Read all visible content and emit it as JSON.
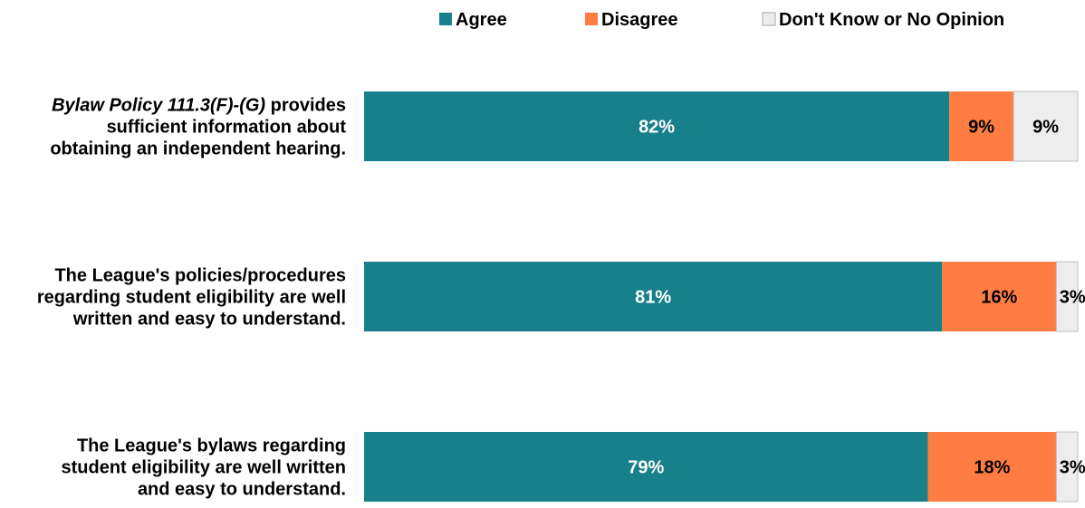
{
  "chart_data": {
    "type": "bar",
    "orientation": "horizontal",
    "stacked": "percent",
    "legend_position": "top",
    "grid": false,
    "xlim": [
      0,
      100
    ],
    "categories": [
      {
        "lines": [
          [
            {
              "text": "Bylaw Policy 111.3(F)-(G)",
              "italic": true
            },
            {
              "text": " provides",
              "italic": false
            }
          ],
          [
            {
              "text": "sufficient information about",
              "italic": false
            }
          ],
          [
            {
              "text": "obtaining an independent hearing.",
              "italic": false
            }
          ]
        ]
      },
      {
        "lines": [
          [
            {
              "text": "The League's policies/procedures",
              "italic": false
            }
          ],
          [
            {
              "text": "regarding student eligibility are well",
              "italic": false
            }
          ],
          [
            {
              "text": "written and easy to understand.",
              "italic": false
            }
          ]
        ]
      },
      {
        "lines": [
          [
            {
              "text": "The League's bylaws regarding",
              "italic": false
            }
          ],
          [
            {
              "text": "student eligibility are well written",
              "italic": false
            }
          ],
          [
            {
              "text": "and easy to understand.",
              "italic": false
            }
          ]
        ]
      }
    ],
    "series": [
      {
        "name": "Agree",
        "color": "#17808A",
        "label_color": "#ffffff",
        "values": [
          82,
          81,
          79
        ],
        "labels": [
          "82%",
          "81%",
          "79%"
        ]
      },
      {
        "name": "Disagree",
        "color": "#FF7C43",
        "label_color": "#000000",
        "values": [
          9,
          16,
          18
        ],
        "labels": [
          "9%",
          "16%",
          "18%"
        ]
      },
      {
        "name": "Don't Know or No Opinion",
        "color": "#EDEDED",
        "label_color": "#000000",
        "values": [
          9,
          3,
          3
        ],
        "labels": [
          "9%",
          "3%",
          "3%"
        ]
      }
    ]
  }
}
